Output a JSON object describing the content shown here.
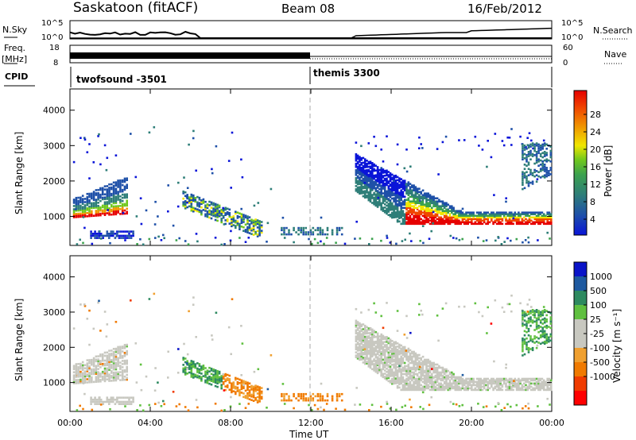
{
  "header": {
    "station": "Saskatoon (fitACF)",
    "beam": "Beam 08",
    "date": "16/Feb/2012"
  },
  "strips": {
    "nsky_label": "N.Sky",
    "nsearch_label": "N.Search",
    "freq_label_1": "Freq.",
    "freq_label_2": "[MHz]",
    "nave_label": "Nave",
    "cpid_label": "CPID",
    "nsky_ticks": [
      "10^5",
      "10^0"
    ],
    "nsearch_ticks": [
      "10^5",
      "10^0"
    ],
    "freq_ticks": [
      "18",
      "8"
    ],
    "nave_ticks": [
      "60",
      "0"
    ],
    "cpid_segments": [
      {
        "label": "twofsound -3501",
        "start_hour": 0
      },
      {
        "label": "themis 3300",
        "start_hour": 12
      }
    ]
  },
  "colors": {
    "power": [
      "#0a14d8",
      "#1e50a8",
      "#2e7e78",
      "#3ca24e",
      "#70c81e",
      "#f0e600",
      "#f09600",
      "#f04600",
      "#e60000"
    ],
    "velocity": [
      "#ff0000",
      "#f03c00",
      "#f07a00",
      "#f0a030",
      "#c8c8c0",
      "#c8c8c0",
      "#60c040",
      "#2e8a60",
      "#1e5aa0",
      "#0a14c8"
    ],
    "ground": "#c8c8c0"
  },
  "chart_data": [
    {
      "type": "heatmap",
      "name": "power",
      "ylabel": "Slant Range [km]",
      "ylim": [
        180,
        4600
      ],
      "yticks": [
        "1000",
        "2000",
        "3000",
        "4000"
      ],
      "xlim": [
        0,
        24
      ],
      "colorbar_label": "Power [dB]",
      "colorbar_ticks": [
        "4",
        "8",
        "12",
        "16",
        "20",
        "24",
        "28"
      ],
      "regions": [
        {
          "t0": 0.15,
          "t1": 2.9,
          "r0": 900,
          "r1": 2100,
          "level": "edge-strong"
        },
        {
          "t0": 1.0,
          "t1": 3.2,
          "r0": 380,
          "r1": 650,
          "level": "weak"
        },
        {
          "t0": 5.5,
          "t1": 9.5,
          "r0": 500,
          "r1": 1800,
          "level": "medium"
        },
        {
          "t0": 10.5,
          "t1": 13.5,
          "r0": 500,
          "r1": 750,
          "level": "weak"
        },
        {
          "t0": 14.2,
          "t1": 24.0,
          "r0": 800,
          "r1": 2800,
          "level": "edge-strong"
        },
        {
          "t0": 22.5,
          "t1": 24.0,
          "r0": 1700,
          "r1": 3200,
          "level": "medium"
        }
      ]
    },
    {
      "type": "heatmap",
      "name": "velocity",
      "ylabel": "Slant Range [km]",
      "ylim": [
        180,
        4600
      ],
      "yticks": [
        "1000",
        "2000",
        "3000",
        "4000"
      ],
      "xlim": [
        0,
        24
      ],
      "xticks": [
        "00:00",
        "04:00",
        "08:00",
        "12:00",
        "16:00",
        "20:00",
        "00:00"
      ],
      "xlabel": "Time UT",
      "colorbar_label": "Velocity [m s⁻¹]",
      "colorbar_ticks": [
        "1000",
        "500",
        "100",
        "25",
        "-25",
        "-100",
        "-500",
        "-1000"
      ]
    }
  ]
}
